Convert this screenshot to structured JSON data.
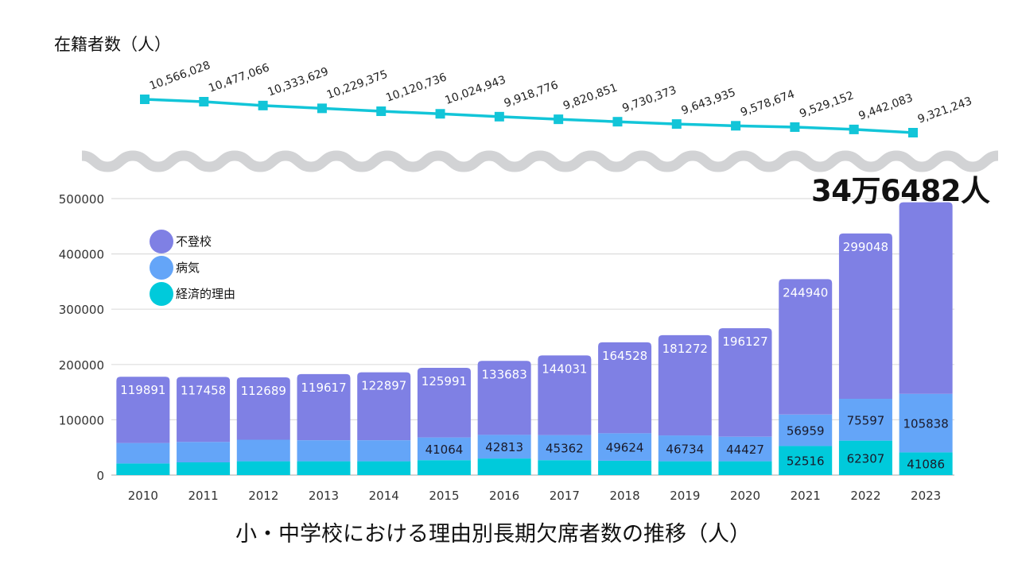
{
  "titles": {
    "enrollment_title": "在籍者数（人）",
    "main_title": "小・中学校における理由別長期欠席者数の推移（人）",
    "highlight": "34万6482人"
  },
  "colors": {
    "futoko": "#7f80e4",
    "byoki": "#64a5f8",
    "keizai": "#00cadb",
    "enrollment_line": "#12c5d8",
    "wave": "#d2d3d5",
    "grid": "#dddddd"
  },
  "chart_data": [
    {
      "type": "line",
      "title": "在籍者数（人）",
      "x": [
        "2010",
        "2011",
        "2012",
        "2013",
        "2014",
        "2015",
        "2016",
        "2017",
        "2018",
        "2019",
        "2020",
        "2021",
        "2022",
        "2023"
      ],
      "values": [
        10566028,
        10477066,
        10333629,
        10229375,
        10120736,
        10024943,
        9918776,
        9820851,
        9730373,
        9643935,
        9578674,
        9529152,
        9442083,
        9321243
      ],
      "labels": [
        "10,566,028",
        "10,477,066",
        "10,333,629",
        "10,229,375",
        "10,120,736",
        "10,024,943",
        "9,918,776",
        "9,820,851",
        "9,730,373",
        "9,643,935",
        "9,578,674",
        "9,529,152",
        "9,442,083",
        "9,321,243"
      ],
      "axis_break": true,
      "marker": "square"
    },
    {
      "type": "bar",
      "stacked": true,
      "title": "小・中学校における理由別長期欠席者数の推移（人）",
      "categories": [
        "2010",
        "2011",
        "2012",
        "2013",
        "2014",
        "2015",
        "2016",
        "2017",
        "2018",
        "2019",
        "2020",
        "2021",
        "2022",
        "2023"
      ],
      "series": [
        {
          "name": "経済的理由",
          "color_key": "keizai",
          "values": [
            21000,
            23000,
            25000,
            25000,
            25000,
            27000,
            30000,
            27000,
            26000,
            25000,
            25000,
            52516,
            62307,
            41086
          ],
          "shown_labels": [
            null,
            null,
            null,
            null,
            null,
            null,
            null,
            null,
            null,
            null,
            null,
            "52516",
            "62307",
            "41086"
          ]
        },
        {
          "name": "病気",
          "color_key": "byoki",
          "values": [
            37000,
            37000,
            39000,
            38000,
            38000,
            41064,
            42813,
            45362,
            49624,
            46734,
            44427,
            56959,
            75597,
            105838
          ],
          "shown_labels": [
            null,
            null,
            null,
            null,
            null,
            "41064",
            "42813",
            "45362",
            "49624",
            "46734",
            "44427",
            "56959",
            "75597",
            "105838"
          ]
        },
        {
          "name": "不登校",
          "color_key": "futoko",
          "values": [
            119891,
            117458,
            112689,
            119617,
            122897,
            125991,
            133683,
            144031,
            164528,
            181272,
            196127,
            244940,
            299048,
            346482
          ],
          "shown_labels": [
            "119891",
            "117458",
            "112689",
            "119617",
            "122897",
            "125991",
            "133683",
            "144031",
            "164528",
            "181272",
            "196127",
            "244940",
            "299048",
            null
          ]
        }
      ],
      "legend": [
        "不登校",
        "病気",
        "経済的理由"
      ],
      "legend_position": "top-left",
      "y_ticks": [
        "0",
        "100000",
        "200000",
        "300000",
        "400000",
        "500000"
      ],
      "ylim": [
        0,
        500000
      ],
      "grid": true,
      "annotation": "34万6482人"
    }
  ]
}
